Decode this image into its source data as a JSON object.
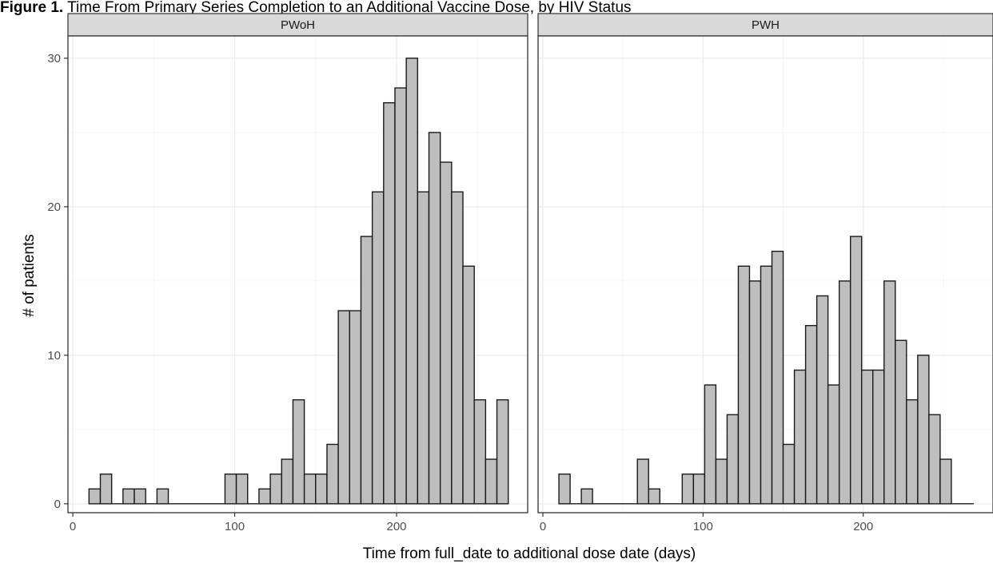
{
  "figure": {
    "title_prefix": "Figure 1.",
    "title_rest": " Time From Primary Series Completion to an Additional Vaccine Dose, by HIV Status"
  },
  "chart_data": {
    "type": "bar",
    "ylabel": "# of patients",
    "xlabel": "Time from full_date to additional dose date (days)",
    "x_ticks": [
      0,
      100,
      200
    ],
    "y_ticks": [
      0,
      10,
      20,
      30
    ],
    "grid": true,
    "bin_width": 7,
    "panels": [
      {
        "name": "PWoH",
        "xlim": [
          -3,
          281
        ],
        "ylim": [
          -0.6,
          31.5
        ],
        "bins": [
          {
            "x": 13.5,
            "y": 1
          },
          {
            "x": 20.5,
            "y": 2
          },
          {
            "x": 34.5,
            "y": 1
          },
          {
            "x": 41.5,
            "y": 1
          },
          {
            "x": 55.5,
            "y": 1
          },
          {
            "x": 97.5,
            "y": 2
          },
          {
            "x": 104.5,
            "y": 2
          },
          {
            "x": 118.5,
            "y": 1
          },
          {
            "x": 125.5,
            "y": 2
          },
          {
            "x": 132.5,
            "y": 3
          },
          {
            "x": 139.5,
            "y": 7
          },
          {
            "x": 146.5,
            "y": 2
          },
          {
            "x": 153.5,
            "y": 2
          },
          {
            "x": 160.5,
            "y": 4
          },
          {
            "x": 167.5,
            "y": 13
          },
          {
            "x": 174.5,
            "y": 13
          },
          {
            "x": 181.5,
            "y": 18
          },
          {
            "x": 188.5,
            "y": 21
          },
          {
            "x": 195.5,
            "y": 27
          },
          {
            "x": 202.5,
            "y": 28
          },
          {
            "x": 209.5,
            "y": 30
          },
          {
            "x": 216.5,
            "y": 21
          },
          {
            "x": 223.5,
            "y": 25
          },
          {
            "x": 230.5,
            "y": 23
          },
          {
            "x": 237.5,
            "y": 21
          },
          {
            "x": 244.5,
            "y": 16
          },
          {
            "x": 251.5,
            "y": 7
          },
          {
            "x": 258.5,
            "y": 3
          },
          {
            "x": 265.5,
            "y": 7
          }
        ]
      },
      {
        "name": "PWH",
        "xlim": [
          -3,
          281
        ],
        "ylim": [
          -0.6,
          31.5
        ],
        "bins": [
          {
            "x": 13.5,
            "y": 2
          },
          {
            "x": 27.5,
            "y": 1
          },
          {
            "x": 62.5,
            "y": 3
          },
          {
            "x": 69.5,
            "y": 1
          },
          {
            "x": 90.5,
            "y": 2
          },
          {
            "x": 97.5,
            "y": 2
          },
          {
            "x": 104.5,
            "y": 8
          },
          {
            "x": 111.5,
            "y": 3
          },
          {
            "x": 118.5,
            "y": 6
          },
          {
            "x": 125.5,
            "y": 16
          },
          {
            "x": 132.5,
            "y": 15
          },
          {
            "x": 139.5,
            "y": 16
          },
          {
            "x": 146.5,
            "y": 17
          },
          {
            "x": 153.5,
            "y": 4
          },
          {
            "x": 160.5,
            "y": 9
          },
          {
            "x": 167.5,
            "y": 12
          },
          {
            "x": 174.5,
            "y": 14
          },
          {
            "x": 181.5,
            "y": 8
          },
          {
            "x": 188.5,
            "y": 15
          },
          {
            "x": 195.5,
            "y": 18
          },
          {
            "x": 202.5,
            "y": 9
          },
          {
            "x": 209.5,
            "y": 9
          },
          {
            "x": 216.5,
            "y": 15
          },
          {
            "x": 223.5,
            "y": 11
          },
          {
            "x": 230.5,
            "y": 7
          },
          {
            "x": 237.5,
            "y": 10
          },
          {
            "x": 244.5,
            "y": 6
          },
          {
            "x": 251.5,
            "y": 3
          }
        ]
      }
    ]
  }
}
